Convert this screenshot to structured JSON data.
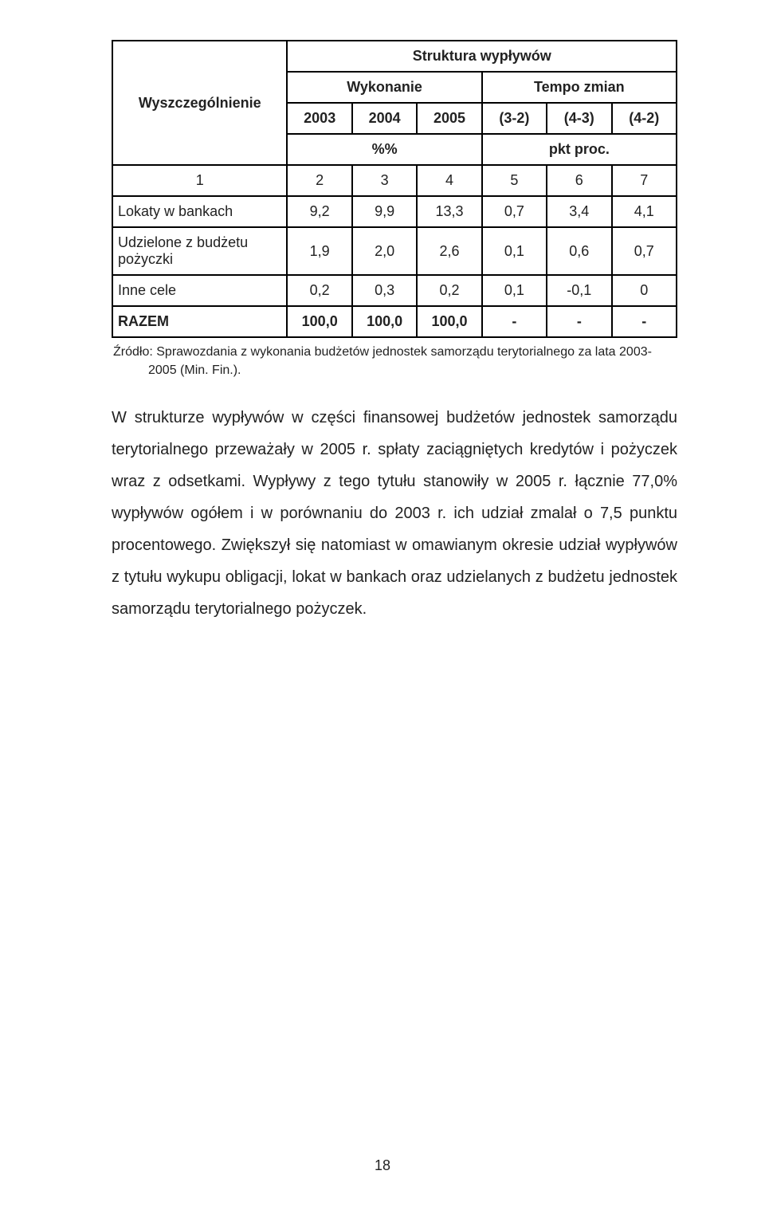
{
  "table": {
    "header": {
      "title": "Struktura wypływów",
      "row_label": "Wyszczególnienie",
      "group_left": "Wykonanie",
      "group_right": "Tempo zmian",
      "years": [
        "2003",
        "2004",
        "2005"
      ],
      "diffs": [
        "(3-2)",
        "(4-3)",
        "(4-2)"
      ],
      "unit_left": "%%",
      "unit_right": "pkt proc."
    },
    "index_row": [
      "1",
      "2",
      "3",
      "4",
      "5",
      "6",
      "7"
    ],
    "rows": [
      {
        "label": "Lokaty w bankach",
        "vals": [
          "9,2",
          "9,9",
          "13,3",
          "0,7",
          "3,4",
          "4,1"
        ]
      },
      {
        "label": "Udzielone z budżetu pożyczki",
        "vals": [
          "1,9",
          "2,0",
          "2,6",
          "0,1",
          "0,6",
          "0,7"
        ]
      },
      {
        "label": "Inne cele",
        "vals": [
          "0,2",
          "0,3",
          "0,2",
          "0,1",
          "-0,1",
          "0"
        ]
      }
    ],
    "total": {
      "label": "RAZEM",
      "vals": [
        "100,0",
        "100,0",
        "100,0",
        "-",
        "-",
        "-"
      ]
    }
  },
  "source": {
    "line1": "Źródło: Sprawozdania z wykonania budżetów jednostek samorządu terytorialnego za lata 2003-",
    "line2": "2005 (Min. Fin.)."
  },
  "paragraph": "W strukturze wypływów w części finansowej budżetów jednostek samorządu terytorialnego przeważały w 2005 r. spłaty zaciągniętych kredytów i pożyczek wraz z odsetkami. Wypływy z tego tytułu stanowiły w 2005 r. łącznie 77,0% wypływów ogółem i w porównaniu do 2003 r. ich udział zmalał o 7,5 punktu procentowego. Zwiększył się natomiast w omawianym okresie udział wypływów z tytułu wykupu obligacji, lokat w bankach oraz udzielanych z budżetu jednostek samorządu terytorialnego pożyczek.",
  "page_number": "18"
}
